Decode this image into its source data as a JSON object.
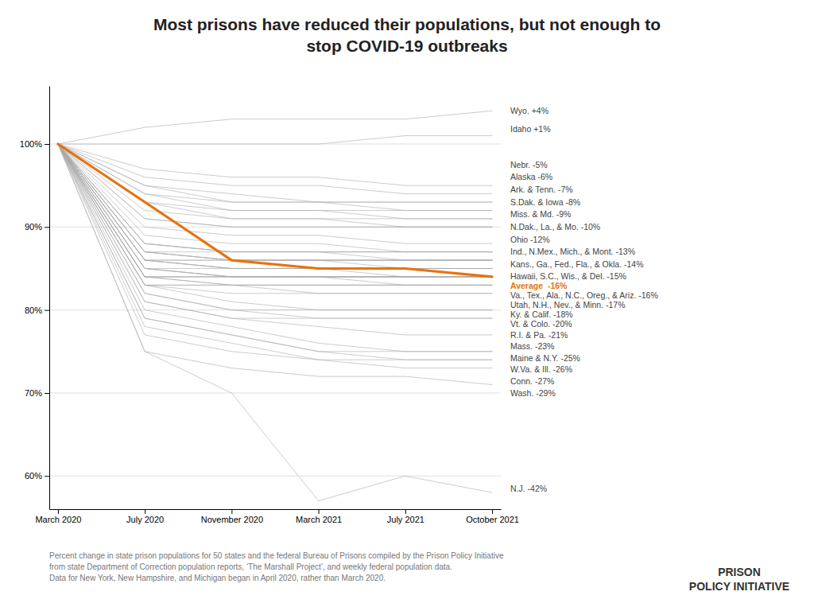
{
  "chart_data": {
    "type": "line",
    "title": "Most prisons have reduced their populations, but not enough to\nstop COVID-19 outbreaks",
    "categories": [
      "March 2020",
      "July 2020",
      "November 2020",
      "March 2021",
      "July 2021",
      "October 2021"
    ],
    "ylim": [
      56,
      107
    ],
    "yticks": [
      {
        "value": 60,
        "label": "60%"
      },
      {
        "value": 70,
        "label": "70%"
      },
      {
        "value": 80,
        "label": "80%"
      },
      {
        "value": 90,
        "label": "90%"
      },
      {
        "value": 100,
        "label": "100%"
      }
    ],
    "grid": true,
    "series": [
      {
        "color": "#aaaaaa",
        "values": [
          100,
          102,
          103,
          103,
          103,
          104
        ]
      },
      {
        "color": "#aaaaaa",
        "values": [
          100,
          100,
          100,
          100,
          101,
          101
        ]
      },
      {
        "color": "#aaaaaa",
        "values": [
          100,
          97,
          96,
          96,
          95,
          95
        ]
      },
      {
        "color": "#aaaaaa",
        "values": [
          100,
          96,
          95,
          95,
          94,
          94
        ]
      },
      {
        "color": "#aaaaaa",
        "values": [
          100,
          95,
          94,
          93,
          93,
          93
        ]
      },
      {
        "color": "#aaaaaa",
        "values": [
          100,
          95,
          93,
          93,
          93,
          93
        ]
      },
      {
        "color": "#aaaaaa",
        "values": [
          100,
          94,
          93,
          93,
          92,
          92
        ]
      },
      {
        "color": "#aaaaaa",
        "values": [
          100,
          94,
          92,
          92,
          92,
          92
        ]
      },
      {
        "color": "#aaaaaa",
        "values": [
          100,
          93,
          92,
          92,
          91,
          91
        ]
      },
      {
        "color": "#aaaaaa",
        "values": [
          100,
          93,
          91,
          91,
          91,
          91
        ]
      },
      {
        "color": "#aaaaaa",
        "values": [
          100,
          92,
          91,
          91,
          90,
          90
        ]
      },
      {
        "color": "#aaaaaa",
        "values": [
          100,
          91,
          90,
          90,
          90,
          90
        ]
      },
      {
        "color": "#aaaaaa",
        "values": [
          100,
          91,
          90,
          90,
          90,
          90
        ]
      },
      {
        "color": "#aaaaaa",
        "values": [
          100,
          90,
          89,
          89,
          88,
          88
        ]
      },
      {
        "color": "#aaaaaa",
        "values": [
          100,
          89,
          88,
          88,
          87,
          87
        ]
      },
      {
        "color": "#aaaaaa",
        "values": [
          100,
          88,
          87,
          87,
          87,
          87
        ]
      },
      {
        "color": "#aaaaaa",
        "values": [
          100,
          88,
          87,
          87,
          87,
          87
        ]
      },
      {
        "color": "#aaaaaa",
        "values": [
          100,
          87,
          87,
          87,
          87,
          87
        ]
      },
      {
        "color": "#aaaaaa",
        "values": [
          100,
          88,
          87,
          87,
          86,
          86
        ]
      },
      {
        "color": "#aaaaaa",
        "values": [
          100,
          87,
          86,
          86,
          86,
          86
        ]
      },
      {
        "color": "#aaaaaa",
        "values": [
          100,
          87,
          86,
          86,
          86,
          86
        ]
      },
      {
        "color": "#aaaaaa",
        "values": [
          100,
          86,
          86,
          86,
          86,
          86
        ]
      },
      {
        "color": "#aaaaaa",
        "values": [
          100,
          86,
          86,
          86,
          86,
          86
        ]
      },
      {
        "color": "#aaaaaa",
        "values": [
          100,
          87,
          86,
          86,
          85,
          85
        ]
      },
      {
        "color": "#aaaaaa",
        "values": [
          100,
          86,
          85,
          85,
          85,
          85
        ]
      },
      {
        "color": "#aaaaaa",
        "values": [
          100,
          86,
          85,
          85,
          85,
          85
        ]
      },
      {
        "color": "#aaaaaa",
        "values": [
          100,
          85,
          85,
          85,
          85,
          85
        ]
      },
      {
        "color": "#aaaaaa",
        "values": [
          100,
          86,
          85,
          85,
          84,
          84
        ]
      },
      {
        "color": "#aaaaaa",
        "values": [
          100,
          85,
          84,
          84,
          84,
          84
        ]
      },
      {
        "color": "#aaaaaa",
        "values": [
          100,
          85,
          84,
          84,
          84,
          84
        ]
      },
      {
        "color": "#aaaaaa",
        "values": [
          100,
          84,
          84,
          84,
          84,
          84
        ]
      },
      {
        "color": "#aaaaaa",
        "values": [
          100,
          84,
          84,
          84,
          84,
          84
        ]
      },
      {
        "color": "#aaaaaa",
        "values": [
          100,
          84,
          84,
          84,
          84,
          84
        ]
      },
      {
        "color": "#aaaaaa",
        "values": [
          100,
          85,
          84,
          84,
          83,
          83
        ]
      },
      {
        "color": "#aaaaaa",
        "values": [
          100,
          84,
          83,
          83,
          83,
          83
        ]
      },
      {
        "color": "#aaaaaa",
        "values": [
          100,
          83,
          83,
          83,
          83,
          83
        ]
      },
      {
        "color": "#aaaaaa",
        "values": [
          100,
          83,
          83,
          83,
          83,
          83
        ]
      },
      {
        "color": "#aaaaaa",
        "values": [
          100,
          84,
          83,
          82,
          82,
          82
        ]
      },
      {
        "color": "#aaaaaa",
        "values": [
          100,
          83,
          82,
          82,
          82,
          82
        ]
      },
      {
        "color": "#aaaaaa",
        "values": [
          100,
          83,
          81,
          80,
          80,
          80
        ]
      },
      {
        "color": "#aaaaaa",
        "values": [
          100,
          82,
          80,
          80,
          80,
          80
        ]
      },
      {
        "color": "#aaaaaa",
        "values": [
          100,
          82,
          80,
          79,
          79,
          79
        ]
      },
      {
        "color": "#aaaaaa",
        "values": [
          100,
          81,
          79,
          79,
          79,
          79
        ]
      },
      {
        "color": "#aaaaaa",
        "values": [
          100,
          81,
          79,
          78,
          77,
          77
        ]
      },
      {
        "color": "#aaaaaa",
        "values": [
          100,
          80,
          78,
          76,
          75,
          75
        ]
      },
      {
        "color": "#aaaaaa",
        "values": [
          100,
          79,
          77,
          75,
          75,
          75
        ]
      },
      {
        "color": "#aaaaaa",
        "values": [
          100,
          79,
          77,
          75,
          74,
          74
        ]
      },
      {
        "color": "#aaaaaa",
        "values": [
          100,
          78,
          76,
          74,
          74,
          74
        ]
      },
      {
        "color": "#aaaaaa",
        "values": [
          100,
          77,
          75,
          74,
          73,
          73
        ]
      },
      {
        "color": "#aaaaaa",
        "values": [
          100,
          75,
          73,
          72,
          72,
          71
        ]
      },
      {
        "color": "#aaaaaa",
        "values": [
          100,
          75,
          70,
          57,
          60,
          58
        ]
      },
      {
        "color": "#e8720c",
        "values": [
          100,
          93,
          86,
          85,
          85,
          84
        ]
      }
    ],
    "annotations": [
      {
        "text": "Wyo. +4%",
        "y": 104.0
      },
      {
        "text": "Idaho +1%",
        "y": 101.8
      },
      {
        "text": "Nebr. -5%",
        "y": 97.5
      },
      {
        "text": "Alaska -6%",
        "y": 96.0
      },
      {
        "text": "Ark. & Tenn. -7%",
        "y": 94.5
      },
      {
        "text": "S.Dak. & Iowa -8%",
        "y": 93.0
      },
      {
        "text": "Miss. & Md. -9%",
        "y": 91.5
      },
      {
        "text": "N.Dak., La., & Mo. -10%",
        "y": 90.0
      },
      {
        "text": "Ohio -12%",
        "y": 88.5
      },
      {
        "text": "Ind., N.Mex., Mich., & Mont. -13%",
        "y": 87.0
      },
      {
        "text": "Kans., Ga., Fed., Fla., & Okla. -14%",
        "y": 85.5
      },
      {
        "text": "Hawaii, S.C., Wis., & Del. -15%",
        "y": 84.1
      },
      {
        "text": "Average  -16%",
        "y": 84.0,
        "color": "#e8720c"
      },
      {
        "text": "Va., Tex., Ala., N.C., Oreg., & Ariz. -16%",
        "y": 82.6
      },
      {
        "text": "Utah, N.H., Nev., & Minn. -17%",
        "y": 81.2
      },
      {
        "text": "Ky. & Calif. -18%",
        "y": 79.8
      },
      {
        "text": "Vt. & Colo. -20%",
        "y": 78.4
      },
      {
        "text": "R.I. & Pa. -21%",
        "y": 77.0
      },
      {
        "text": "Mass. -23%",
        "y": 75.6
      },
      {
        "text": "Maine & N.Y. -25%",
        "y": 74.2
      },
      {
        "text": "W.Va. & Ill. -26%",
        "y": 72.8
      },
      {
        "text": "Conn. -27%",
        "y": 71.4
      },
      {
        "text": "Wash. -29%",
        "y": 70.0
      },
      {
        "text": "N.J. -42%",
        "y": 58.5
      }
    ],
    "footnote": [
      "Percent change in state prison populations for 50 states and the federal Bureau of Prisons compiled by the Prison Policy Initiative",
      "from state Department of Correction population reports, ‘The Marshall Project’, and weekly federal population data.",
      "Data for New York, New Hampshire, and Michigan began in April 2020, rather than March 2020."
    ],
    "logo": [
      "PRISON",
      "POLICY INITIATIVE"
    ]
  }
}
